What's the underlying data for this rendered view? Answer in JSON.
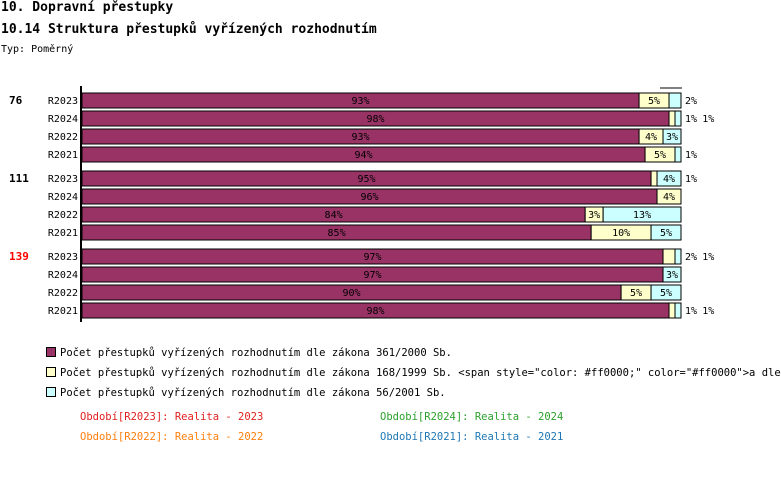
{
  "header": {
    "title": "10. Dopravní přestupky",
    "subtitle": "10.14 Struktura přestupků vyřízených rozhodnutím",
    "type_label": "Typ: Poměrný"
  },
  "chart_data": {
    "type": "bar",
    "stacked": true,
    "orientation": "horizontal",
    "xlim": [
      0,
      100
    ],
    "groups": [
      {
        "label": "76",
        "color": "#000000",
        "rows": [
          {
            "label": "R2023",
            "values": [
              93,
              5,
              2
            ]
          },
          {
            "label": "R2024",
            "values": [
              98,
              1,
              1
            ]
          },
          {
            "label": "R2022",
            "values": [
              93,
              4,
              3
            ]
          },
          {
            "label": "R2021",
            "values": [
              94,
              5,
              1
            ]
          }
        ]
      },
      {
        "label": "111",
        "color": "#000000",
        "rows": [
          {
            "label": "R2023",
            "values": [
              95,
              1,
              4
            ]
          },
          {
            "label": "R2024",
            "values": [
              96,
              4,
              0
            ]
          },
          {
            "label": "R2022",
            "values": [
              84,
              3,
              13
            ]
          },
          {
            "label": "R2021",
            "values": [
              85,
              10,
              5
            ]
          }
        ]
      },
      {
        "label": "139",
        "color": "#ff0000",
        "rows": [
          {
            "label": "R2023",
            "values": [
              97,
              2,
              1
            ]
          },
          {
            "label": "R2024",
            "values": [
              97,
              0,
              3
            ]
          },
          {
            "label": "R2022",
            "values": [
              90,
              5,
              5
            ]
          },
          {
            "label": "R2021",
            "values": [
              98,
              1,
              1
            ]
          }
        ]
      }
    ],
    "series": [
      {
        "name": "Počet přestupků vyřízených rozhodnutím dle zákona 361/2000 Sb.",
        "color": "#993366"
      },
      {
        "name": "Počet přestupků vyřízených rozhodnutím dle zákona 168/1999 Sb. <span style=\"color: #ff0000;\" color=\"#ff0000\">a dle",
        "color": "#ffffcc"
      },
      {
        "name": "Počet přestupků vyřízených rozhodnutím dle zákona 56/2001 Sb.",
        "color": "#ccffff"
      }
    ]
  },
  "periods": [
    {
      "text": "Období[R2023]: Realita - 2023",
      "color": "#e02020"
    },
    {
      "text": "Období[R2024]: Realita - 2024",
      "color": "#2ca02c"
    },
    {
      "text": "Období[R2022]: Realita - 2022",
      "color": "#ff7f0e"
    },
    {
      "text": "Období[R2021]: Realita - 2021",
      "color": "#1f77b4"
    }
  ]
}
